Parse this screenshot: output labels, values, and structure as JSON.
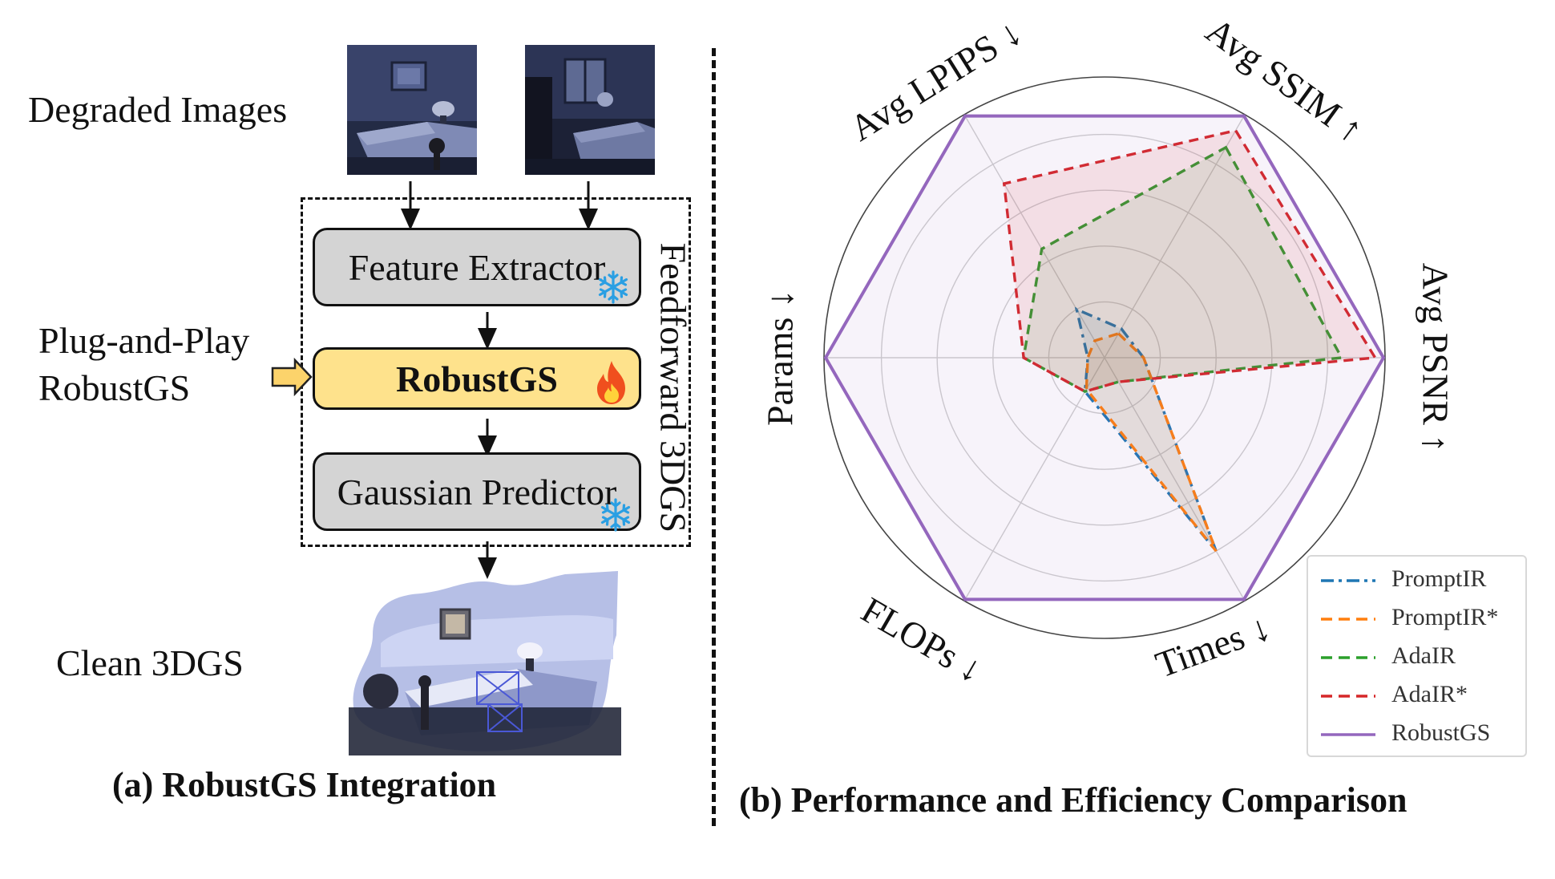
{
  "left": {
    "degraded_label": "Degraded Images",
    "plug_label_line1": "Plug-and-Play",
    "plug_label_line2": "RobustGS",
    "clean_label": "Clean 3DGS",
    "feedforward_label": "Feedforward 3DGS",
    "blocks": {
      "feature_extractor": "Feature Extractor",
      "robustgs": "RobustGS",
      "gaussian_predictor": "Gaussian Predictor"
    },
    "caption": "(a) RobustGS Integration"
  },
  "right": {
    "caption": "(b) Performance and  Efficiency Comparison",
    "axis_labels": [
      "Avg SSIM ↑",
      "Avg PSNR ↑",
      "Times ↓",
      "FLOPs ↓",
      "Params ↓",
      "Avg LPIPS ↓"
    ]
  },
  "chart_data": {
    "type": "radar",
    "axes": [
      "Avg SSIM ↑",
      "Avg PSNR ↑",
      "Times ↓",
      "FLOPs ↓",
      "Params ↓",
      "Avg LPIPS ↓"
    ],
    "rmax": 1.0,
    "rings": [
      0.2,
      0.4,
      0.6,
      0.8,
      1.0
    ],
    "legend_position": "bottom-right",
    "series": [
      {
        "name": "PromptIR",
        "values": [
          0.12,
          0.14,
          0.8,
          0.14,
          0.06,
          0.2
        ],
        "color": "#1f77b4",
        "dash": "dashdot",
        "fill": true
      },
      {
        "name": "PromptIR*",
        "values": [
          0.1,
          0.14,
          0.8,
          0.13,
          0.06,
          0.07
        ],
        "color": "#ff7f0e",
        "dash": "dash",
        "fill": true
      },
      {
        "name": "AdaIR",
        "values": [
          0.87,
          0.85,
          0.1,
          0.14,
          0.29,
          0.45
        ],
        "color": "#2ca02c",
        "dash": "dash",
        "fill": true
      },
      {
        "name": "AdaIR*",
        "values": [
          0.94,
          0.97,
          0.1,
          0.14,
          0.29,
          0.72
        ],
        "color": "#d62728",
        "dash": "dash",
        "fill": true
      },
      {
        "name": "RobustGS",
        "values": [
          1.0,
          1.0,
          1.0,
          1.0,
          1.0,
          1.0
        ],
        "color": "#9467bd",
        "dash": "solid",
        "fill": true
      }
    ]
  },
  "colors": {
    "robustgs_block": "#fee28c",
    "frozen_block": "#d4d4d4",
    "snowflake": "#2a9fe3",
    "flame": "#f04f1e",
    "arrow_fill": "#fcd36b"
  },
  "icons": {
    "frozen": "snowflake-icon",
    "trainable": "flame-icon"
  }
}
